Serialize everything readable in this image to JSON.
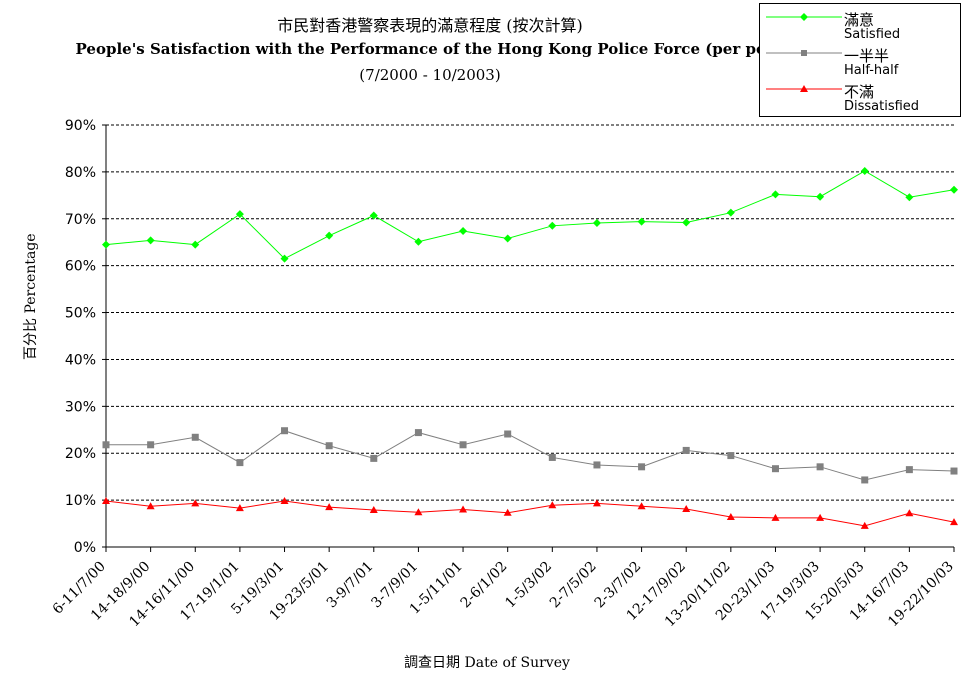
{
  "chart_data": {
    "type": "line",
    "title": "市民對香港警察表現的滿意程度 (按次計算)",
    "subtitle": "People's Satisfaction with the Performance of the Hong Kong Police Force (per poll)",
    "period": "(7/2000 - 10/2003)",
    "xlabel": "調查日期 Date of Survey",
    "ylabel": "百分比 Percentage",
    "ylim": [
      0,
      90
    ],
    "yticks": [
      "0%",
      "10%",
      "20%",
      "30%",
      "40%",
      "50%",
      "60%",
      "70%",
      "80%",
      "90%"
    ],
    "grid": true,
    "legend_position": "top-right",
    "categories": [
      "6-11/7/00",
      "14-18/9/00",
      "14-16/11/00",
      "17-19/1/01",
      "5-19/3/01",
      "19-23/5/01",
      "3-9/7/01",
      "3-7/9/01",
      "1-5/11/01",
      "2-6/1/02",
      "1-5/3/02",
      "2-7/5/02",
      "2-3/7/02",
      "12-17/9/02",
      "13-20/11/02",
      "20-23/1/03",
      "17-19/3/03",
      "15-20/5/03",
      "14-16/7/03",
      "19-22/10/03"
    ],
    "series": [
      {
        "name": "滿意",
        "name_en": "Satisfied",
        "color": "#00ff00",
        "marker": "diamond",
        "values": [
          64.5,
          65.4,
          64.5,
          71.0,
          61.5,
          66.4,
          70.7,
          65.1,
          67.4,
          65.8,
          68.5,
          69.1,
          69.4,
          69.2,
          71.3,
          75.2,
          74.7,
          80.2,
          74.6,
          76.2
        ]
      },
      {
        "name": "一半半",
        "name_en": "Half-half",
        "color": "#808080",
        "marker": "square",
        "values": [
          21.8,
          21.8,
          23.4,
          18.0,
          24.8,
          21.6,
          18.9,
          24.4,
          21.8,
          24.1,
          19.1,
          17.5,
          17.1,
          20.6,
          19.5,
          16.7,
          17.1,
          14.3,
          16.5,
          16.2
        ]
      },
      {
        "name": "不滿",
        "name_en": "Dissatisfied",
        "color": "#ff0000",
        "marker": "triangle",
        "values": [
          9.8,
          8.7,
          9.3,
          8.3,
          9.8,
          8.5,
          7.9,
          7.4,
          8.0,
          7.3,
          8.9,
          9.3,
          8.7,
          8.1,
          6.4,
          6.2,
          6.2,
          4.5,
          7.2,
          5.3
        ]
      }
    ]
  }
}
